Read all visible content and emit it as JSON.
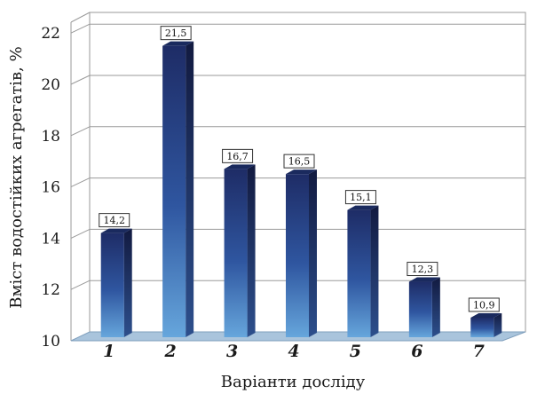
{
  "chart_data": {
    "type": "bar",
    "categories": [
      "1",
      "2",
      "3",
      "4",
      "5",
      "6",
      "7"
    ],
    "values": [
      14.2,
      21.5,
      16.7,
      16.5,
      15.1,
      12.3,
      10.9
    ],
    "value_labels": [
      "14,2",
      "21,5",
      "16,7",
      "16,5",
      "15,1",
      "12,3",
      "10,9"
    ],
    "ylabel": "Вміст водостійких агрегатів, %",
    "xlabel": "Варіанти досліду",
    "ylim": [
      10,
      22
    ],
    "yticks": [
      "10",
      "12",
      "14",
      "16",
      "18",
      "20",
      "22"
    ],
    "grid": true,
    "bar_style": "3d",
    "colors": {
      "bar_top": "#1e2c66",
      "bar_bottom": "#5c9ad4",
      "bar_side": "#17204a",
      "grid": "#9a9a9a",
      "floor": "#a9c4dc"
    }
  }
}
